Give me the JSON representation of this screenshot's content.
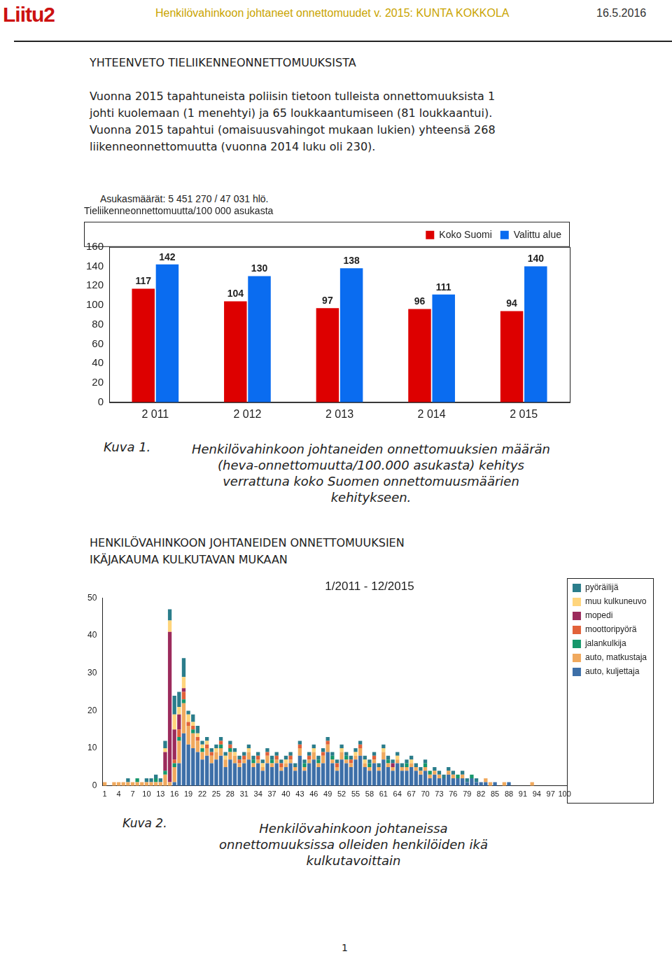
{
  "header": {
    "logo": "Liitu2",
    "title": "Henkilövahinkoon johtaneet onnettomuudet v. 2015: KUNTA KOKKOLA",
    "date": "16.5.2016"
  },
  "heading": "YHTEENVETO TIELIIKENNEONNETTOMUUKSISTA",
  "summary": {
    "lines": [
      "Vuonna 2015 tapahtuneista poliisin tietoon tulleista onnettomuuksista 1",
      "johti kuolemaan (1 menehtyi) ja 65 loukkaantumiseen (81 loukkaantui).",
      "Vuonna 2015 tapahtui (omaisuusvahingot mukaan lukien) yhteensä 268",
      "liikenneonnettomuutta (vuonna 2014 luku oli 230)."
    ]
  },
  "population_note": "Asukasmäärät: 5 451 270 / 47 031 hlö.",
  "figures": [
    {
      "label": "Kuva 1.",
      "caption_lines": [
        "Henkilövahinkoon johtaneiden onnettomuuksien määrän",
        "(heva-onnettomuutta/100.000 asukasta) kehitys",
        "verrattuna koko Suomen onnettomuusmäärien",
        "kehitykseen."
      ]
    },
    {
      "label": "Kuva 2.",
      "caption_lines": [
        "Henkilövahinkoon johtaneissa",
        "onnettomuuksissa olleiden henkilöiden ikä",
        "kulkutavoittain"
      ]
    }
  ],
  "section_heading_lines": [
    "HENKILÖVAHINKOON JOHTANEIDEN ONNETTOMUUKSIEN",
    "IKÄJAKAUMA KULKUTAVAN MUKAAN"
  ],
  "page_number": "1",
  "chart_data": [
    {
      "type": "bar",
      "title": "Tieliikenneonnettomuutta/100 000 asukasta",
      "categories": [
        "2 011",
        "2 012",
        "2 013",
        "2 014",
        "2 015"
      ],
      "series": [
        {
          "name": "Koko Suomi",
          "color": "#dd0000",
          "values": [
            117,
            104,
            97,
            96,
            94
          ]
        },
        {
          "name": "Valittu alue",
          "color": "#0a6cf0",
          "values": [
            142,
            130,
            138,
            111,
            140
          ]
        }
      ],
      "ylim": [
        0,
        160
      ],
      "yticks": [
        0,
        20,
        40,
        60,
        80,
        100,
        120,
        140,
        160
      ],
      "grid": false,
      "legend": "top",
      "data_labels": true
    },
    {
      "type": "bar",
      "title": "1/2011 - 12/2015",
      "categories": [
        "1",
        null,
        null,
        "4",
        null,
        null,
        "7",
        null,
        null,
        "10",
        null,
        null,
        "13",
        null,
        null,
        "16",
        null,
        null,
        "19",
        null,
        null,
        "22",
        null,
        null,
        "25",
        null,
        null,
        "28",
        null,
        null,
        "31",
        null,
        null,
        "34",
        null,
        null,
        "37",
        null,
        null,
        "40",
        null,
        null,
        "43",
        null,
        null,
        "46",
        null,
        null,
        "49",
        null,
        null,
        "52",
        null,
        null,
        "55",
        null,
        null,
        "58",
        null,
        null,
        "61",
        null,
        null,
        "64",
        null,
        null,
        "67",
        null,
        null,
        "70",
        null,
        null,
        "73",
        null,
        null,
        "76",
        null,
        null,
        "79",
        null,
        null,
        "82",
        null,
        null,
        "85",
        null,
        null,
        "88",
        null,
        null,
        "91",
        null,
        null,
        "94",
        null,
        null,
        "97",
        null,
        null,
        "100"
      ],
      "series": [
        {
          "name": "auto, kuljettaja",
          "color": "#3d6fa8",
          "values": [
            0,
            0,
            0,
            0,
            0,
            0,
            0,
            0,
            0,
            0,
            0,
            0,
            0,
            0,
            0,
            1,
            6,
            14,
            11,
            10,
            9,
            7,
            8,
            6,
            7,
            8,
            5,
            7,
            6,
            5,
            6,
            7,
            5,
            6,
            4,
            6,
            5,
            6,
            4,
            5,
            6,
            4,
            8,
            4,
            6,
            7,
            5,
            6,
            9,
            6,
            4,
            7,
            6,
            5,
            7,
            8,
            5,
            4,
            6,
            4,
            7,
            5,
            4,
            6,
            4,
            4,
            5,
            4,
            3,
            4,
            2,
            3,
            2,
            2,
            3,
            2,
            2,
            2,
            1,
            2,
            1,
            1,
            1,
            0,
            1,
            0,
            0,
            1,
            0,
            0,
            0,
            0,
            0,
            0,
            0,
            0,
            0,
            0,
            0,
            0
          ]
        },
        {
          "name": "auto, matkustaja",
          "color": "#f0a95e",
          "values": [
            1,
            0,
            1,
            1,
            1,
            1,
            1,
            1,
            1,
            1,
            1,
            1,
            1,
            3,
            1,
            4,
            6,
            8,
            5,
            4,
            3,
            2,
            2,
            2,
            2,
            2,
            2,
            2,
            2,
            1,
            1,
            2,
            1,
            1,
            1,
            2,
            1,
            1,
            1,
            1,
            1,
            1,
            2,
            1,
            1,
            2,
            1,
            2,
            2,
            1,
            1,
            2,
            1,
            1,
            1,
            2,
            1,
            1,
            1,
            1,
            2,
            1,
            1,
            1,
            1,
            1,
            1,
            1,
            1,
            1,
            1,
            1,
            1,
            0,
            1,
            1,
            0,
            1,
            0,
            0,
            0,
            0,
            1,
            1,
            0,
            0,
            1,
            0,
            0,
            0,
            0,
            0,
            1,
            0,
            0,
            0,
            0,
            0,
            0,
            0
          ]
        },
        {
          "name": "jalankulkija",
          "color": "#16976b",
          "values": [
            0,
            0,
            0,
            0,
            0,
            0,
            0,
            1,
            0,
            0,
            0,
            1,
            0,
            1,
            0,
            1,
            1,
            1,
            0,
            1,
            0,
            1,
            0,
            0,
            0,
            1,
            0,
            1,
            0,
            0,
            0,
            0,
            1,
            0,
            0,
            0,
            1,
            0,
            0,
            0,
            0,
            0,
            0,
            1,
            0,
            0,
            1,
            0,
            0,
            1,
            0,
            0,
            1,
            0,
            0,
            0,
            0,
            1,
            0,
            0,
            0,
            1,
            0,
            0,
            0,
            1,
            0,
            0,
            0,
            1,
            1,
            0,
            0,
            0,
            0,
            0,
            1,
            0,
            0,
            1,
            0,
            0,
            0,
            0,
            0,
            0,
            0,
            0,
            0,
            0,
            0,
            0,
            0,
            0,
            0,
            0,
            0,
            0,
            0,
            0
          ]
        },
        {
          "name": "moottoripyörä",
          "color": "#e2623a",
          "values": [
            0,
            0,
            0,
            0,
            0,
            0,
            0,
            0,
            0,
            0,
            0,
            0,
            0,
            0,
            0,
            1,
            2,
            2,
            1,
            1,
            1,
            0,
            1,
            1,
            0,
            1,
            0,
            1,
            0,
            1,
            1,
            0,
            0,
            1,
            0,
            1,
            0,
            1,
            1,
            0,
            1,
            0,
            1,
            0,
            1,
            0,
            0,
            1,
            1,
            0,
            1,
            0,
            0,
            1,
            0,
            1,
            0,
            0,
            1,
            0,
            0,
            0,
            0,
            0,
            0,
            0,
            0,
            0,
            0,
            0,
            0,
            0,
            0,
            0,
            0,
            0,
            0,
            0,
            0,
            0,
            0,
            0,
            0,
            0,
            0,
            0,
            0,
            0,
            0,
            0,
            0,
            0,
            0,
            0,
            0,
            0,
            0,
            0,
            0,
            0
          ]
        },
        {
          "name": "mopedi",
          "color": "#9c2b5c",
          "values": [
            0,
            0,
            0,
            0,
            0,
            0,
            0,
            0,
            0,
            0,
            0,
            0,
            0,
            5,
            40,
            8,
            4,
            1,
            0,
            0,
            0,
            0,
            0,
            0,
            0,
            0,
            0,
            0,
            0,
            0,
            0,
            0,
            0,
            0,
            0,
            0,
            0,
            0,
            0,
            0,
            0,
            0,
            0,
            0,
            0,
            0,
            0,
            0,
            0,
            0,
            0,
            0,
            0,
            0,
            0,
            0,
            0,
            0,
            0,
            0,
            0,
            0,
            1,
            0,
            0,
            0,
            0,
            0,
            0,
            0,
            0,
            0,
            0,
            0,
            0,
            0,
            0,
            0,
            0,
            0,
            0,
            0,
            0,
            0,
            0,
            0,
            0,
            0,
            0,
            0,
            0,
            0,
            0,
            0,
            0,
            0,
            0,
            0,
            0,
            0
          ]
        },
        {
          "name": "muu kulkuneuvo",
          "color": "#ffd57c",
          "values": [
            0,
            0,
            0,
            0,
            0,
            0,
            0,
            0,
            0,
            0,
            0,
            0,
            0,
            1,
            3,
            4,
            2,
            3,
            2,
            1,
            1,
            1,
            1,
            0,
            1,
            0,
            1,
            0,
            1,
            0,
            0,
            1,
            0,
            0,
            1,
            0,
            0,
            0,
            0,
            1,
            0,
            0,
            0,
            0,
            0,
            1,
            0,
            0,
            0,
            0,
            0,
            1,
            0,
            0,
            1,
            0,
            1,
            0,
            0,
            0,
            1,
            0,
            0,
            1,
            0,
            0,
            1,
            0,
            0,
            0,
            0,
            0,
            0,
            0,
            0,
            0,
            0,
            0,
            0,
            0,
            0,
            0,
            0,
            0,
            0,
            0,
            0,
            0,
            0,
            0,
            0,
            0,
            0,
            0,
            0,
            0,
            0,
            0,
            0,
            0
          ]
        },
        {
          "name": "pyöräilijä",
          "color": "#2b7d8b",
          "values": [
            0,
            0,
            0,
            0,
            0,
            1,
            0,
            0,
            0,
            1,
            1,
            1,
            1,
            2,
            3,
            5,
            4,
            5,
            1,
            2,
            2,
            1,
            1,
            1,
            1,
            1,
            1,
            1,
            1,
            1,
            1,
            1,
            1,
            1,
            1,
            1,
            1,
            1,
            1,
            1,
            1,
            1,
            1,
            1,
            1,
            1,
            1,
            1,
            1,
            1,
            1,
            1,
            1,
            1,
            1,
            1,
            1,
            1,
            1,
            1,
            1,
            1,
            1,
            1,
            1,
            1,
            1,
            1,
            1,
            1,
            0,
            1,
            1,
            1,
            1,
            1,
            0,
            1,
            1,
            0,
            1,
            0,
            0,
            0,
            0,
            0,
            0,
            0,
            0,
            0,
            0,
            0,
            0,
            0,
            0,
            0,
            0,
            0,
            0,
            0
          ]
        }
      ],
      "ylim": [
        0,
        50
      ],
      "yticks": [
        0,
        10,
        20,
        30,
        40,
        50
      ],
      "stacked": true,
      "grid": false,
      "legend": "right"
    }
  ]
}
